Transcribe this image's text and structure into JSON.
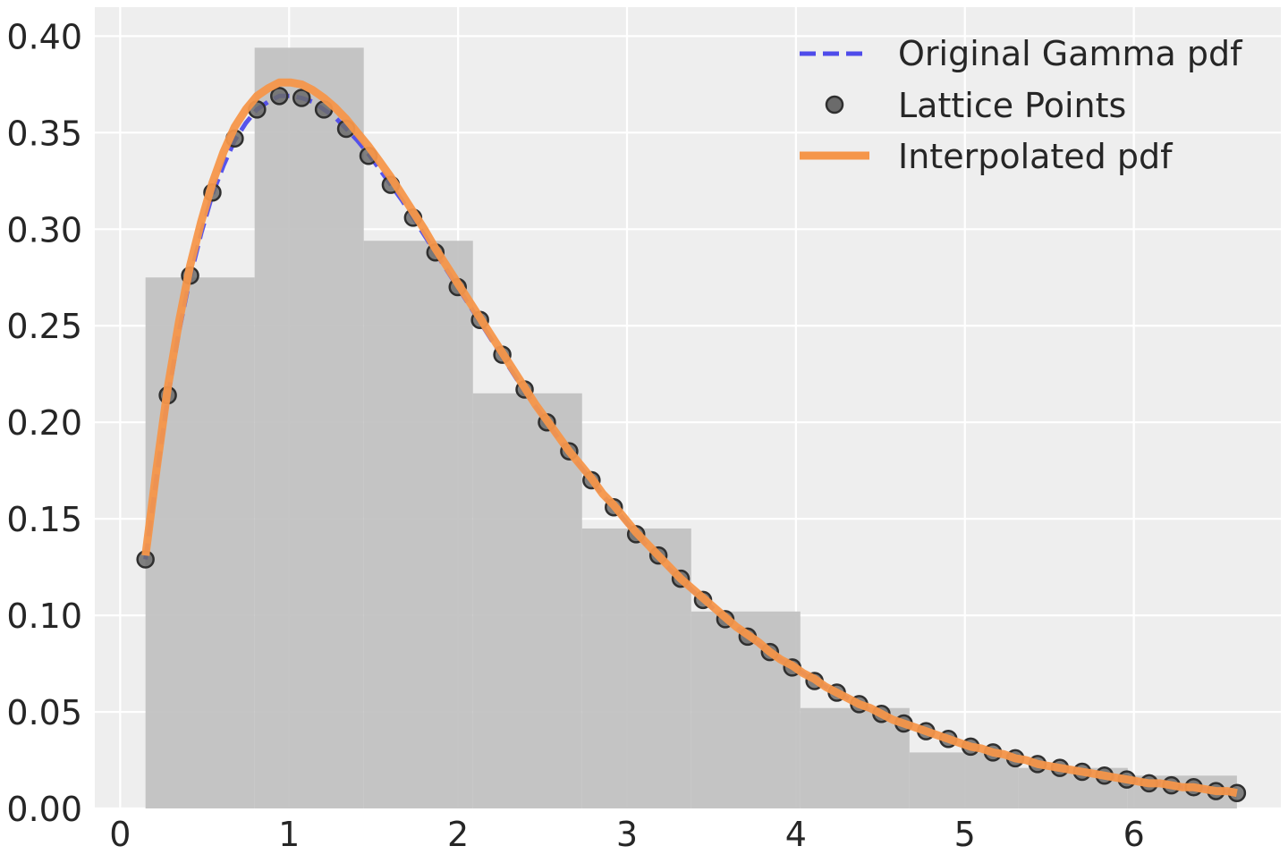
{
  "chart_data": {
    "type": "line",
    "xlim": [
      -0.15,
      6.87
    ],
    "ylim": [
      0.0,
      0.415
    ],
    "grid": true,
    "legend_position": "top-right",
    "x_ticks": [
      0,
      1,
      2,
      3,
      4,
      5,
      6
    ],
    "x_tick_labels": [
      "0",
      "1",
      "2",
      "3",
      "4",
      "5",
      "6"
    ],
    "y_ticks": [
      0.0,
      0.05,
      0.1,
      0.15,
      0.2,
      0.25,
      0.3,
      0.35,
      0.4
    ],
    "y_tick_labels": [
      "0.00",
      "0.05",
      "0.10",
      "0.15",
      "0.20",
      "0.25",
      "0.30",
      "0.35",
      "0.40"
    ],
    "colors": {
      "background": "#eeeeee",
      "grid": "#ffffff",
      "histogram": "#c0c0c0",
      "original": "#4e4bea",
      "lattice_points": "#6b6b6b",
      "lattice_edge": "#2f2f2f",
      "interpolated": "#f5964a"
    },
    "histogram": {
      "edges": [
        0.15,
        0.796,
        1.442,
        2.088,
        2.734,
        3.38,
        4.026,
        4.672,
        5.318,
        5.964,
        6.61
      ],
      "heights": [
        0.275,
        0.394,
        0.294,
        0.215,
        0.145,
        0.102,
        0.052,
        0.029,
        0.021,
        0.017
      ]
    },
    "series": [
      {
        "name": "Original Gamma pdf",
        "style": "dashed",
        "x": [
          0.15,
          0.216,
          0.282,
          0.348,
          0.414,
          0.48,
          0.546,
          0.612,
          0.678,
          0.744,
          0.81,
          0.876,
          0.942,
          1.008,
          1.074,
          1.14,
          1.206,
          1.272,
          1.338,
          1.404,
          1.47,
          1.536,
          1.602,
          1.668,
          1.734,
          1.8,
          1.866,
          1.932,
          1.998,
          2.064,
          2.13,
          2.196,
          2.262,
          2.328,
          2.394,
          2.46,
          2.526,
          2.592,
          2.658,
          2.724,
          2.79,
          2.856,
          2.922,
          2.988,
          3.054,
          3.12,
          3.186,
          3.252,
          3.318,
          3.384,
          3.45,
          3.516,
          3.582,
          3.648,
          3.714,
          3.78,
          3.846,
          3.912,
          3.978,
          4.044,
          4.11,
          4.176,
          4.242,
          4.308,
          4.374,
          4.44,
          4.506,
          4.572,
          4.638,
          4.704,
          4.77,
          4.836,
          4.902,
          4.968,
          5.034,
          5.1,
          5.166,
          5.232,
          5.298,
          5.364,
          5.43,
          5.496,
          5.562,
          5.628,
          5.694,
          5.76,
          5.826,
          5.892,
          5.958,
          6.024,
          6.09,
          6.156,
          6.222,
          6.288,
          6.354,
          6.42,
          6.486,
          6.552,
          6.61
        ],
        "y": [
          0.129,
          0.172,
          0.213,
          0.247,
          0.275,
          0.298,
          0.318,
          0.333,
          0.346,
          0.355,
          0.362,
          0.366,
          0.369,
          0.369,
          0.368,
          0.366,
          0.362,
          0.358,
          0.352,
          0.346,
          0.339,
          0.331,
          0.323,
          0.315,
          0.306,
          0.297,
          0.288,
          0.279,
          0.27,
          0.261,
          0.252,
          0.243,
          0.234,
          0.225,
          0.216,
          0.208,
          0.2,
          0.192,
          0.184,
          0.177,
          0.17,
          0.162,
          0.156,
          0.149,
          0.142,
          0.136,
          0.13,
          0.124,
          0.119,
          0.113,
          0.108,
          0.103,
          0.098,
          0.094,
          0.089,
          0.085,
          0.081,
          0.077,
          0.073,
          0.07,
          0.066,
          0.063,
          0.06,
          0.057,
          0.054,
          0.051,
          0.049,
          0.046,
          0.044,
          0.042,
          0.04,
          0.038,
          0.036,
          0.034,
          0.032,
          0.031,
          0.029,
          0.028,
          0.026,
          0.025,
          0.023,
          0.022,
          0.021,
          0.02,
          0.019,
          0.018,
          0.017,
          0.016,
          0.015,
          0.014,
          0.013,
          0.013,
          0.012,
          0.011,
          0.011,
          0.01,
          0.009,
          0.009,
          0.008
        ]
      },
      {
        "name": "Lattice Points",
        "style": "markers",
        "x": [
          0.15,
          0.282,
          0.414,
          0.546,
          0.678,
          0.81,
          0.942,
          1.074,
          1.206,
          1.338,
          1.47,
          1.602,
          1.734,
          1.866,
          1.998,
          2.13,
          2.262,
          2.394,
          2.526,
          2.658,
          2.79,
          2.922,
          3.054,
          3.186,
          3.318,
          3.45,
          3.582,
          3.714,
          3.846,
          3.978,
          4.11,
          4.242,
          4.374,
          4.506,
          4.638,
          4.77,
          4.902,
          5.034,
          5.166,
          5.298,
          5.43,
          5.562,
          5.694,
          5.826,
          5.958,
          6.09,
          6.222,
          6.354,
          6.486,
          6.61
        ],
        "y": [
          0.129,
          0.214,
          0.276,
          0.319,
          0.347,
          0.362,
          0.369,
          0.368,
          0.362,
          0.352,
          0.338,
          0.323,
          0.306,
          0.288,
          0.27,
          0.253,
          0.235,
          0.217,
          0.2,
          0.185,
          0.17,
          0.156,
          0.142,
          0.131,
          0.119,
          0.108,
          0.098,
          0.089,
          0.081,
          0.073,
          0.066,
          0.06,
          0.054,
          0.049,
          0.044,
          0.04,
          0.036,
          0.032,
          0.029,
          0.026,
          0.023,
          0.021,
          0.019,
          0.017,
          0.015,
          0.013,
          0.012,
          0.011,
          0.009,
          0.008
        ]
      },
      {
        "name": "Interpolated pdf",
        "style": "solid",
        "x": [
          0.15,
          0.216,
          0.282,
          0.348,
          0.414,
          0.48,
          0.546,
          0.612,
          0.678,
          0.744,
          0.81,
          0.876,
          0.942,
          1.008,
          1.074,
          1.14,
          1.206,
          1.272,
          1.338,
          1.404,
          1.47,
          1.536,
          1.602,
          1.668,
          1.734,
          1.8,
          1.866,
          1.932,
          1.998,
          2.064,
          2.13,
          2.196,
          2.262,
          2.328,
          2.394,
          2.46,
          2.526,
          2.592,
          2.658,
          2.724,
          2.79,
          2.856,
          2.922,
          2.988,
          3.054,
          3.12,
          3.186,
          3.252,
          3.318,
          3.384,
          3.45,
          3.516,
          3.582,
          3.648,
          3.714,
          3.78,
          3.846,
          3.912,
          3.978,
          4.044,
          4.11,
          4.176,
          4.242,
          4.308,
          4.374,
          4.44,
          4.506,
          4.572,
          4.638,
          4.704,
          4.77,
          4.836,
          4.902,
          4.968,
          5.034,
          5.1,
          5.166,
          5.232,
          5.298,
          5.364,
          5.43,
          5.496,
          5.562,
          5.628,
          5.694,
          5.76,
          5.826,
          5.892,
          5.958,
          6.024,
          6.09,
          6.156,
          6.222,
          6.288,
          6.354,
          6.42,
          6.486,
          6.552,
          6.61
        ],
        "y": [
          0.131,
          0.176,
          0.218,
          0.252,
          0.281,
          0.304,
          0.324,
          0.34,
          0.353,
          0.362,
          0.369,
          0.373,
          0.376,
          0.376,
          0.375,
          0.372,
          0.368,
          0.363,
          0.357,
          0.35,
          0.343,
          0.335,
          0.327,
          0.318,
          0.309,
          0.3,
          0.29,
          0.281,
          0.272,
          0.263,
          0.254,
          0.245,
          0.236,
          0.227,
          0.218,
          0.209,
          0.201,
          0.193,
          0.185,
          0.178,
          0.171,
          0.163,
          0.157,
          0.15,
          0.143,
          0.137,
          0.131,
          0.125,
          0.119,
          0.114,
          0.109,
          0.104,
          0.099,
          0.094,
          0.09,
          0.086,
          0.081,
          0.077,
          0.074,
          0.07,
          0.067,
          0.063,
          0.06,
          0.057,
          0.054,
          0.052,
          0.049,
          0.046,
          0.044,
          0.042,
          0.04,
          0.038,
          0.036,
          0.034,
          0.032,
          0.031,
          0.029,
          0.028,
          0.026,
          0.025,
          0.023,
          0.022,
          0.021,
          0.02,
          0.019,
          0.018,
          0.017,
          0.016,
          0.015,
          0.014,
          0.013,
          0.013,
          0.012,
          0.011,
          0.011,
          0.01,
          0.009,
          0.009,
          0.008
        ]
      }
    ]
  }
}
